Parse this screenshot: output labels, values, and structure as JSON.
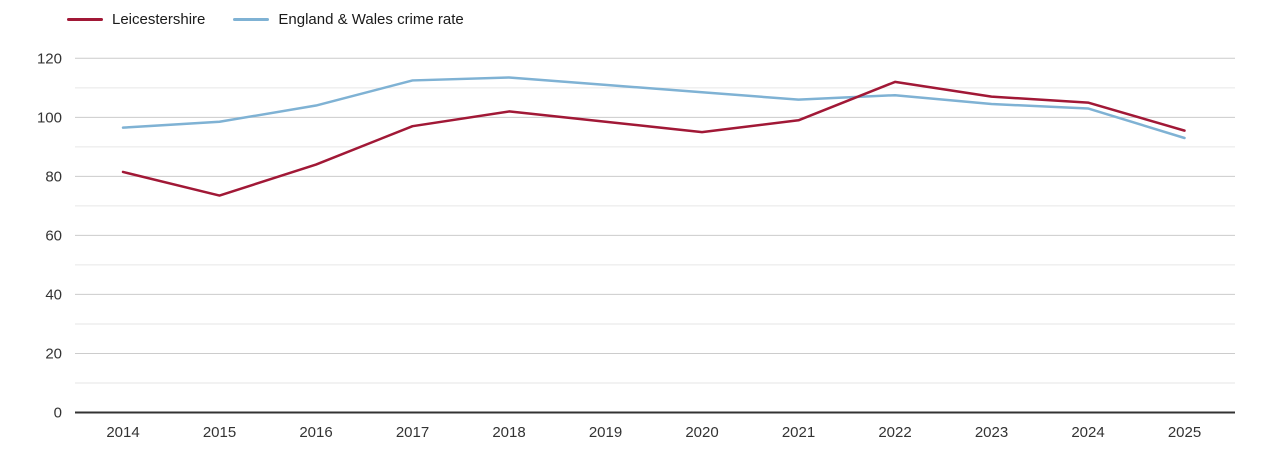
{
  "chart_data": {
    "type": "line",
    "title": "",
    "xlabel": "",
    "ylabel": "",
    "x": [
      2014,
      2015,
      2016,
      2017,
      2018,
      2019,
      2020,
      2021,
      2022,
      2023,
      2024,
      2025
    ],
    "series": [
      {
        "name": "Leicestershire",
        "color": "#a11836",
        "values": [
          81.5,
          73.5,
          84,
          97,
          102,
          98.5,
          95,
          99,
          112,
          107,
          105,
          95.5
        ]
      },
      {
        "name": "England & Wales crime rate",
        "color": "#7fb2d4",
        "values": [
          96.5,
          98.5,
          104,
          112.5,
          113.5,
          111,
          108.5,
          106,
          107.5,
          104.5,
          103,
          93
        ]
      }
    ],
    "ylim": [
      0,
      120
    ],
    "yticks": [
      0,
      20,
      40,
      60,
      80,
      100,
      120
    ],
    "minor_yticks": [
      10,
      30,
      50,
      70,
      90,
      110
    ],
    "grid": "horizontal, major and minor lines",
    "legend_position": "top-left"
  },
  "colors": {
    "background": "#ffffff",
    "axis_line": "#333333",
    "major_gridline": "#cccccc",
    "minor_gridline": "#e6e6e6",
    "tick_label": "#333333",
    "legend_text": "#1a1a1a",
    "series_leicestershire": "#a11836",
    "series_england_wales": "#7fb2d4"
  }
}
